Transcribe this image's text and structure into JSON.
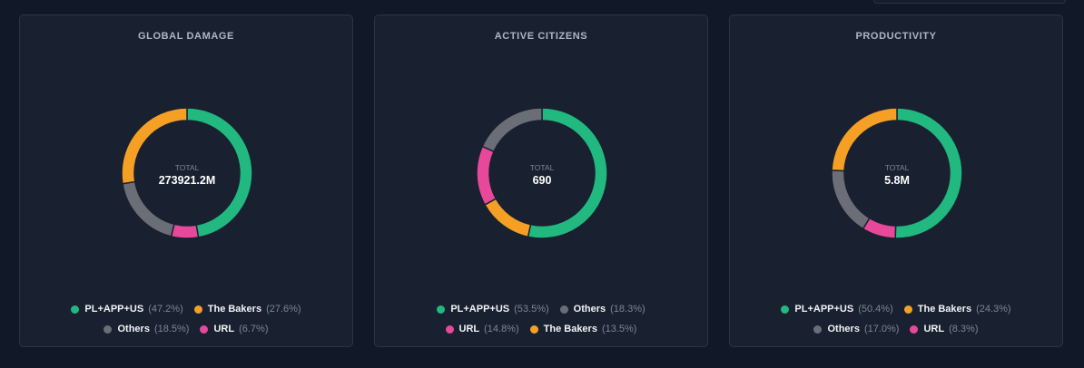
{
  "colors": {
    "green": "#21b97f",
    "orange": "#f5a025",
    "gray": "#6b6e77",
    "pink": "#e8489a",
    "separator": "#192130",
    "total_label": "#7d8694",
    "total_value": "#ffffff"
  },
  "total_label": "TOTAL",
  "chart_data": [
    {
      "type": "pie",
      "title": "GLOBAL DAMAGE",
      "total": "273921.2M",
      "slices": [
        {
          "name": "PL+APP+US",
          "value": 47.2,
          "pct_label": "(47.2%)",
          "color": "green"
        },
        {
          "name": "URL",
          "value": 6.7,
          "pct_label": "(6.7%)",
          "color": "pink"
        },
        {
          "name": "Others",
          "value": 18.5,
          "pct_label": "(18.5%)",
          "color": "gray"
        },
        {
          "name": "The Bakers",
          "value": 27.6,
          "pct_label": "(27.6%)",
          "color": "orange"
        }
      ],
      "legend_order": [
        0,
        3,
        2,
        1
      ]
    },
    {
      "type": "pie",
      "title": "ACTIVE CITIZENS",
      "total": "690",
      "slices": [
        {
          "name": "PL+APP+US",
          "value": 53.5,
          "pct_label": "(53.5%)",
          "color": "green"
        },
        {
          "name": "The Bakers",
          "value": 13.5,
          "pct_label": "(13.5%)",
          "color": "orange"
        },
        {
          "name": "URL",
          "value": 14.8,
          "pct_label": "(14.8%)",
          "color": "pink"
        },
        {
          "name": "Others",
          "value": 18.3,
          "pct_label": "(18.3%)",
          "color": "gray"
        }
      ],
      "legend_order": [
        0,
        3,
        2,
        1
      ]
    },
    {
      "type": "pie",
      "title": "PRODUCTIVITY",
      "total": "5.8M",
      "slices": [
        {
          "name": "PL+APP+US",
          "value": 50.4,
          "pct_label": "(50.4%)",
          "color": "green"
        },
        {
          "name": "URL",
          "value": 8.3,
          "pct_label": "(8.3%)",
          "color": "pink"
        },
        {
          "name": "Others",
          "value": 17.0,
          "pct_label": "(17.0%)",
          "color": "gray"
        },
        {
          "name": "The Bakers",
          "value": 24.3,
          "pct_label": "(24.3%)",
          "color": "orange"
        }
      ],
      "legend_order": [
        0,
        3,
        2,
        1
      ]
    }
  ]
}
